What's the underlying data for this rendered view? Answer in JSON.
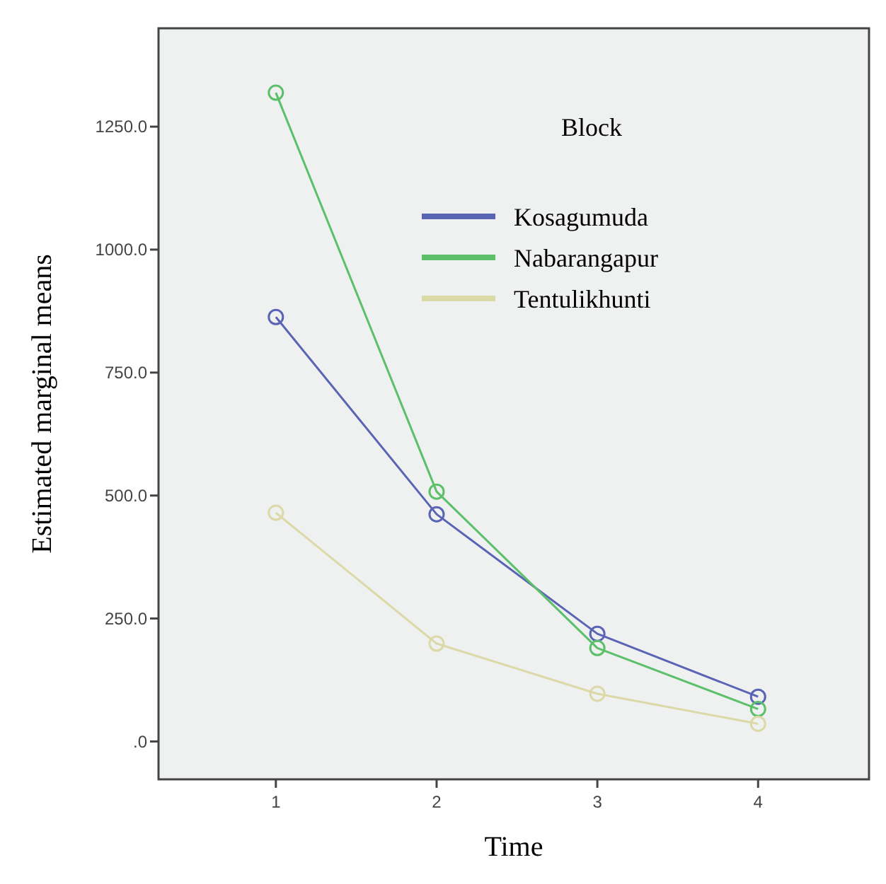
{
  "chart_data": {
    "type": "line",
    "xlabel": "Time",
    "ylabel": "Estimated marginal means",
    "legend_title": "Block",
    "legend": "top right",
    "marker": "circle",
    "grid": false,
    "x": [
      1,
      2,
      3,
      4
    ],
    "xlim": [
      0.27,
      4.69
    ],
    "xticks": [
      1,
      2,
      3,
      4
    ],
    "ylim": [
      -77,
      1450
    ],
    "yticks": [
      {
        "value": 0,
        "label": ".0"
      },
      {
        "value": 250,
        "label": "250.0"
      },
      {
        "value": 500,
        "label": "500.0"
      },
      {
        "value": 750,
        "label": "750.0"
      },
      {
        "value": 1000,
        "label": "1000.0"
      },
      {
        "value": 1250,
        "label": "1250.0"
      }
    ],
    "series": [
      {
        "name": "Kosagumuda",
        "color": "#5a64b4",
        "values": [
          863,
          462,
          219,
          91
        ]
      },
      {
        "name": "Nabarangapur",
        "color": "#5cbf6a",
        "values": [
          1319,
          508,
          190,
          66
        ]
      },
      {
        "name": "Tentulikhunti",
        "color": "#dcd9a8",
        "values": [
          465,
          199,
          97,
          36
        ]
      }
    ]
  }
}
